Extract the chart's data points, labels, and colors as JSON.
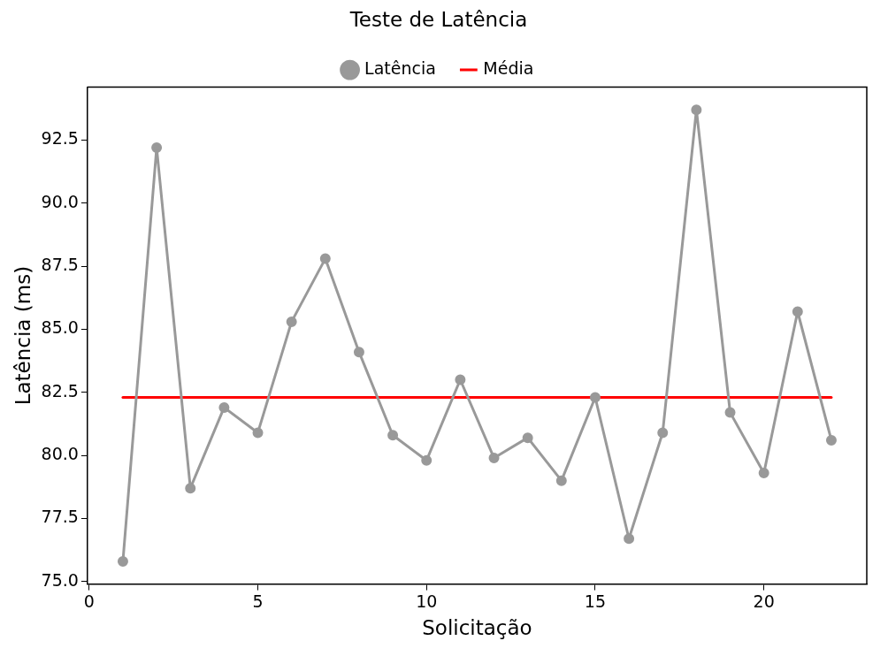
{
  "chart_data": {
    "type": "line",
    "title": "Teste de Latência",
    "xlabel": "Solicitação",
    "ylabel": "Latência (ms)",
    "x": [
      1,
      2,
      3,
      4,
      5,
      6,
      7,
      8,
      9,
      10,
      11,
      12,
      13,
      14,
      15,
      16,
      17,
      18,
      19,
      20,
      21,
      22
    ],
    "series": [
      {
        "name": "Latência",
        "color": "#999999",
        "marker": "circle",
        "values": [
          75.8,
          92.2,
          78.7,
          81.9,
          80.9,
          85.3,
          87.8,
          84.1,
          80.8,
          79.8,
          83.0,
          79.9,
          80.7,
          79.0,
          82.3,
          76.7,
          80.9,
          93.7,
          81.7,
          79.3,
          85.7,
          80.6
        ]
      },
      {
        "name": "Média",
        "color": "#ff0000",
        "marker": "none",
        "x": [
          1,
          22
        ],
        "values": [
          82.3,
          82.3
        ]
      }
    ],
    "xlim": [
      -0.05,
      23.05
    ],
    "ylim": [
      74.9,
      94.6
    ],
    "xticks": [
      0,
      5,
      10,
      15,
      20
    ],
    "yticks": [
      {
        "value": 75,
        "label": "75.0"
      },
      {
        "value": 77.5,
        "label": "77.5"
      },
      {
        "value": 80,
        "label": "80.0"
      },
      {
        "value": 82.5,
        "label": "82.5"
      },
      {
        "value": 85,
        "label": "85.0"
      },
      {
        "value": 87.5,
        "label": "87.5"
      },
      {
        "value": 90,
        "label": "90.0"
      },
      {
        "value": 92.5,
        "label": "92.5"
      }
    ],
    "grid": false,
    "legend": "top",
    "line_style": "solid"
  }
}
